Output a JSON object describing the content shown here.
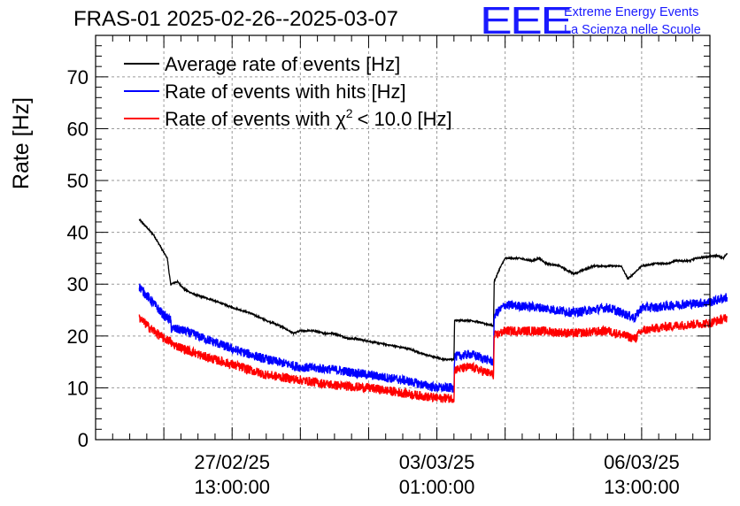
{
  "chart_data": {
    "type": "line",
    "title": "FRAS-01 2025-02-26--2025-03-07",
    "xlabel": "",
    "ylabel": "Rate [Hz]",
    "ylim": [
      0,
      78
    ],
    "xlim": [
      0,
      9
    ],
    "yticks": [
      0,
      10,
      20,
      30,
      40,
      50,
      60,
      70
    ],
    "xticks": [
      {
        "x": 2,
        "label_date": "27/02/25",
        "label_time": "13:00:00"
      },
      {
        "x": 5,
        "label_date": "03/03/25",
        "label_time": "01:00:00"
      },
      {
        "x": 8,
        "label_date": "06/03/25",
        "label_time": "13:00:00"
      }
    ],
    "grid": true,
    "legend_position": "top-left",
    "series": [
      {
        "name": "Average rate of events [Hz]",
        "color": "#000000",
        "noise": 0.15,
        "x": [
          0.64,
          0.85,
          1.05,
          1.1,
          1.2,
          1.3,
          1.45,
          1.7,
          1.9,
          2.0,
          2.25,
          2.5,
          2.7,
          2.9,
          3.0,
          3.2,
          3.35,
          3.5,
          3.7,
          3.8,
          4.0,
          4.2,
          4.4,
          4.6,
          4.8,
          4.95,
          5.1,
          5.25,
          5.26,
          5.5,
          5.83,
          5.84,
          5.92,
          6.0,
          6.2,
          6.4,
          6.5,
          6.6,
          6.8,
          7.0,
          7.3,
          7.6,
          7.7,
          7.8,
          8.0,
          8.2,
          8.4,
          8.5,
          8.6,
          8.7,
          8.8,
          9.1,
          9.2,
          9.25
        ],
        "y": [
          42.5,
          39.5,
          35,
          30,
          30.5,
          29,
          28,
          27,
          26,
          25.5,
          24.5,
          23,
          22,
          20.5,
          21,
          21,
          20.5,
          20.5,
          19.5,
          19.5,
          19,
          18.5,
          18,
          17.5,
          16.5,
          16,
          15.5,
          15.5,
          23,
          23,
          22,
          30.5,
          33,
          35,
          35,
          34.5,
          35,
          34,
          33.5,
          32,
          33.5,
          33.5,
          33.5,
          31,
          33.5,
          34,
          34,
          34.5,
          34.5,
          34.5,
          35,
          35.5,
          35,
          36
        ]
      },
      {
        "name": "Rate of events with hits [Hz]",
        "color": "#0000ff",
        "noise": 0.9,
        "x": [
          0.64,
          0.8,
          1.0,
          1.1,
          1.11,
          1.3,
          1.6,
          2.0,
          2.5,
          3.0,
          3.5,
          4.0,
          4.5,
          5.0,
          5.25,
          5.26,
          5.5,
          5.83,
          5.84,
          6.0,
          6.5,
          7.0,
          7.5,
          7.9,
          8.0,
          8.2,
          8.5,
          9.0,
          9.25
        ],
        "y": [
          29.5,
          27,
          24,
          23,
          21.5,
          21,
          19.5,
          17.5,
          15.5,
          14,
          13.5,
          12.5,
          11.5,
          10,
          10,
          16,
          16.5,
          15,
          24,
          26,
          25.5,
          24.5,
          25.5,
          23.5,
          25.5,
          25.5,
          26,
          26.5,
          27.5
        ]
      },
      {
        "name": "Rate of events with χ² < 10.0 [Hz]",
        "color": "#ff0000",
        "noise": 0.9,
        "x": [
          0.64,
          0.8,
          1.0,
          1.1,
          1.11,
          1.3,
          1.6,
          2.0,
          2.5,
          3.0,
          3.5,
          4.0,
          4.5,
          5.0,
          5.25,
          5.26,
          5.5,
          5.83,
          5.84,
          6.0,
          6.5,
          7.0,
          7.5,
          7.9,
          8.0,
          8.2,
          8.5,
          9.0,
          9.25
        ],
        "y": [
          23.5,
          21.5,
          19.5,
          19,
          18.5,
          17.5,
          16,
          14.5,
          12.5,
          11.5,
          10.5,
          10,
          9,
          8,
          8,
          13.5,
          14,
          12.5,
          20,
          21,
          21,
          20.5,
          21,
          19.5,
          21,
          21.5,
          22,
          22.5,
          23.5
        ]
      }
    ]
  },
  "legend_labels": {
    "avg": "Average rate of events [Hz]",
    "hits": "Rate of events with hits [Hz]",
    "chi_prefix": "Rate of events with",
    "chi_symbol": "χ",
    "chi_exp": "2",
    "chi_suffix": "< 10.0 [Hz]"
  },
  "logo": {
    "mark": "EEE",
    "line1": "Extreme Energy Events",
    "line2": "La Scienza nelle Scuole"
  }
}
